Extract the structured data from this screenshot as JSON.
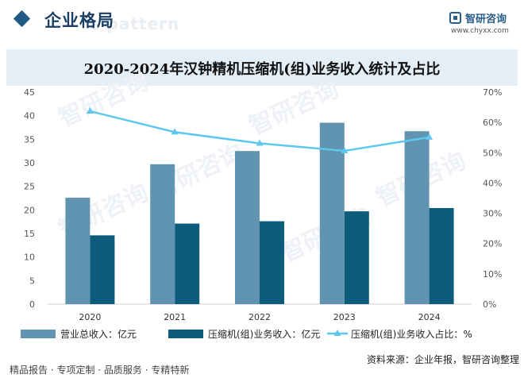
{
  "header": {
    "section_title": "企业格局",
    "ghost_text": "e pattern",
    "brand_name": "智研咨询",
    "brand_url": "www.chyxx.com"
  },
  "chart_data": {
    "type": "bar",
    "title": "2020-2024年汉钟精机压缩机(组)业务收入统计及占比",
    "categories": [
      "2020",
      "2021",
      "2022",
      "2023",
      "2024"
    ],
    "series": [
      {
        "name": "营业总收入：亿元",
        "kind": "bar",
        "axis": "left",
        "color": "#6194b0",
        "values": [
          22.6,
          29.7,
          32.5,
          38.5,
          36.7
        ]
      },
      {
        "name": "压缩机(组)业务收入：亿元",
        "kind": "bar",
        "axis": "left",
        "color": "#0e5c7c",
        "values": [
          14.6,
          17.1,
          17.6,
          19.7,
          20.4
        ]
      },
      {
        "name": "压缩机(组)业务收入占比：%",
        "kind": "line",
        "axis": "right",
        "color": "#5fc7ee",
        "values": [
          63.7,
          56.8,
          53.1,
          50.6,
          55.1
        ]
      }
    ],
    "y_left": {
      "min": 0,
      "max": 45,
      "ticks": [
        "0",
        "5",
        "10",
        "15",
        "20",
        "25",
        "30",
        "35",
        "40",
        "45"
      ]
    },
    "y_right": {
      "min": 0,
      "max": 70,
      "ticks": [
        "0%",
        "10%",
        "20%",
        "30%",
        "40%",
        "50%",
        "60%",
        "70%"
      ]
    },
    "legend_position": "bottom",
    "grid": false
  },
  "footer": {
    "left_text": "精品报告 · 专项定制 · 品质服务 · 专精特新",
    "source_text": "资料来源：企业年报，智研咨询整理"
  },
  "watermark": "智研咨询"
}
